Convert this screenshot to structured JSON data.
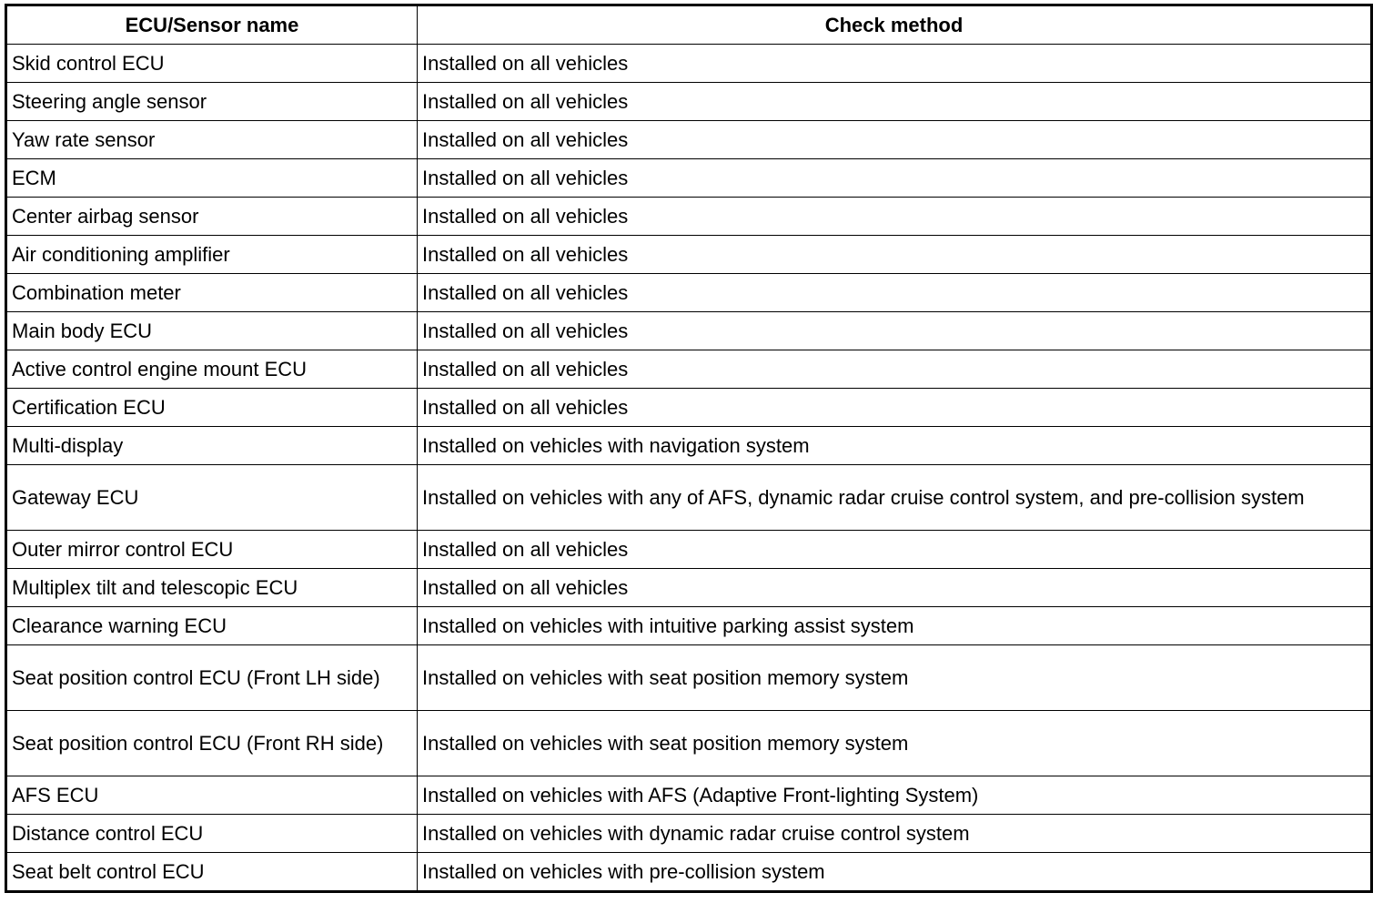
{
  "table": {
    "headers": [
      "ECU/Sensor name",
      "Check method"
    ],
    "rows": [
      {
        "name": "Skid control ECU",
        "method": "Installed on all vehicles"
      },
      {
        "name": "Steering angle sensor",
        "method": "Installed on all vehicles"
      },
      {
        "name": "Yaw rate sensor",
        "method": "Installed on all vehicles"
      },
      {
        "name": "ECM",
        "method": "Installed on all vehicles"
      },
      {
        "name": "Center airbag sensor",
        "method": "Installed on all vehicles"
      },
      {
        "name": "Air conditioning amplifier",
        "method": "Installed on all vehicles"
      },
      {
        "name": "Combination meter",
        "method": "Installed on all vehicles"
      },
      {
        "name": "Main body ECU",
        "method": "Installed on all vehicles"
      },
      {
        "name": "Active control engine mount ECU",
        "method": "Installed on all vehicles"
      },
      {
        "name": "Certification ECU",
        "method": "Installed on all vehicles"
      },
      {
        "name": "Multi-display",
        "method": "Installed on vehicles with navigation system"
      },
      {
        "name": "Gateway ECU",
        "method": "Installed on vehicles with any of AFS, dynamic radar cruise control system, and pre-collision system"
      },
      {
        "name": "Outer mirror control ECU",
        "method": "Installed on all vehicles"
      },
      {
        "name": "Multiplex tilt and telescopic ECU",
        "method": "Installed on all vehicles"
      },
      {
        "name": "Clearance warning ECU",
        "method": "Installed on vehicles with intuitive parking assist system"
      },
      {
        "name": "Seat position control ECU (Front LH side)",
        "method": "Installed on vehicles with seat position memory system"
      },
      {
        "name": "Seat position control ECU (Front RH side)",
        "method": "Installed on vehicles with seat position memory system"
      },
      {
        "name": "AFS ECU",
        "method": "Installed on vehicles with AFS (Adaptive Front-lighting System)"
      },
      {
        "name": "Distance control ECU",
        "method": "Installed on vehicles with dynamic radar cruise control system"
      },
      {
        "name": "Seat belt control ECU",
        "method": "Installed on vehicles with pre-collision system"
      }
    ]
  }
}
